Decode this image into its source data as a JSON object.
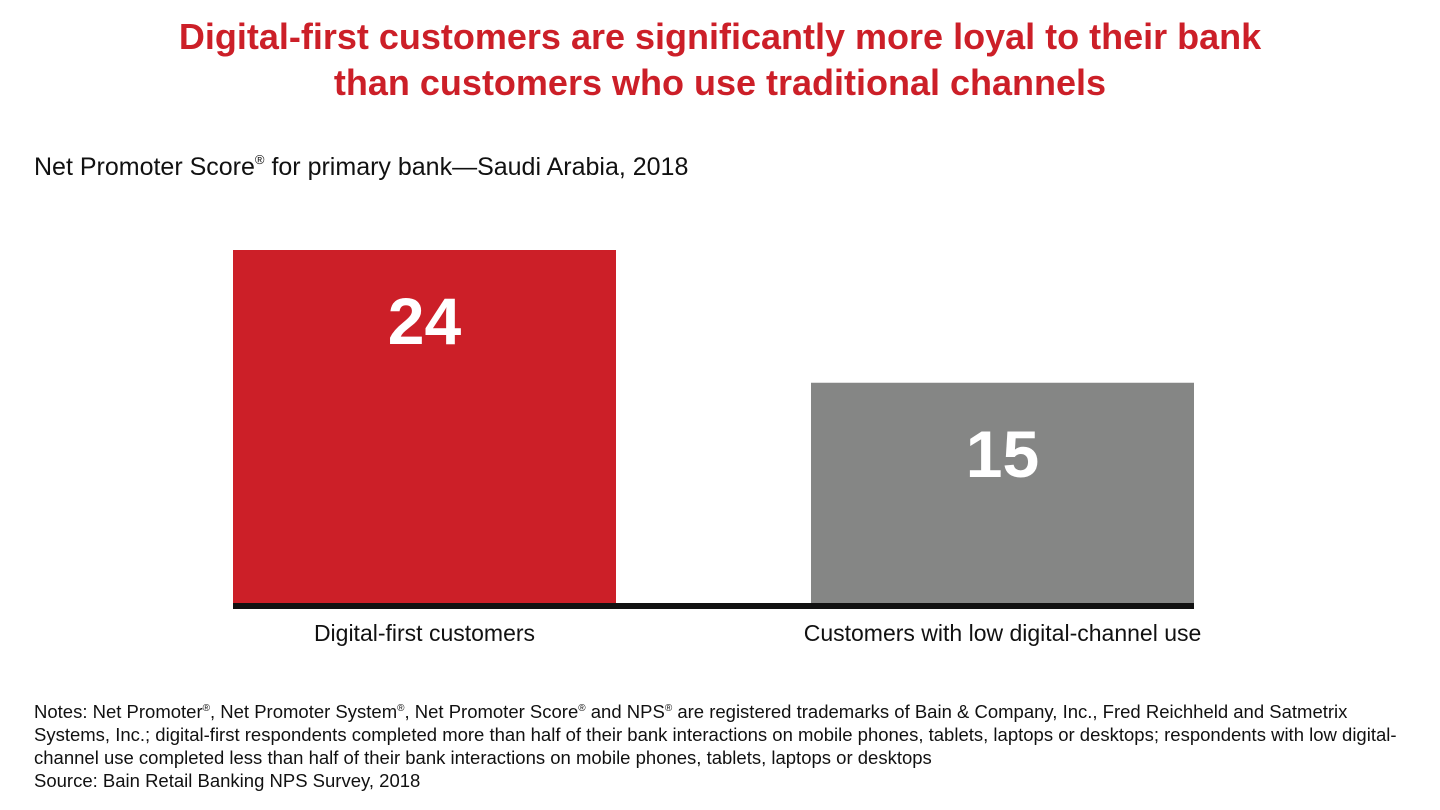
{
  "header": {
    "title_line1": "Digital-first customers are significantly more loyal to their bank",
    "title_line2": "than customers who use traditional channels",
    "subtitle_pre": "Net Promoter Score",
    "subtitle_mark": "®",
    "subtitle_post": " for primary bank—Saudi Arabia, 2018"
  },
  "chart_data": {
    "type": "bar",
    "title": "Net Promoter Score® for primary bank—Saudi Arabia, 2018",
    "categories": [
      "Digital-first customers",
      "Customers with low digital-channel use"
    ],
    "values": [
      24,
      15
    ],
    "value_labels": [
      "24",
      "15"
    ],
    "ylim": [
      0,
      24
    ],
    "bar_colors": [
      "#cc1f28",
      "#858685"
    ],
    "grid": false,
    "legend": "none"
  },
  "footer": {
    "notes_parts": [
      "Notes: Net Promoter",
      "®",
      ", Net Promoter System",
      "®",
      ", Net Promoter Score",
      "®",
      " and NPS",
      "®",
      " are registered trademarks of Bain & Company, Inc., Fred Reichheld and Satmetrix Systems, Inc.; digital-first respondents completed more than half of their bank interactions on mobile phones, tablets, laptops or desktops; respondents with low digital-channel use completed less than half of their bank interactions on mobile phones, tablets, laptops or desktops"
    ],
    "source": "Source: Bain Retail Banking NPS Survey, 2018"
  },
  "colors": {
    "accent": "#cc1f28",
    "secondary_bar": "#858685",
    "baseline": "#111111"
  }
}
